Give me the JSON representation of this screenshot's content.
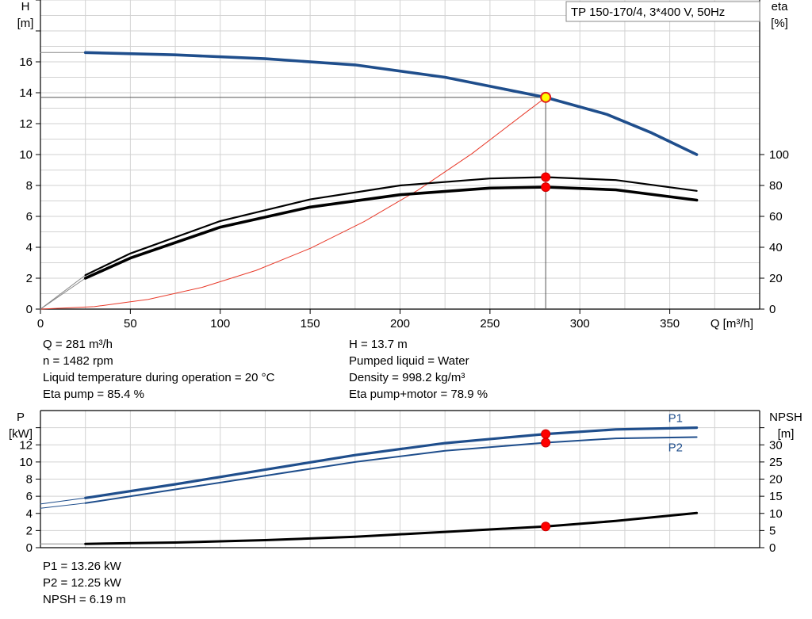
{
  "chart_data": [
    {
      "type": "line",
      "title": "TP 150-170/4, 3*400 V, 50Hz",
      "xlabel": "Q [m³/h]",
      "ylabel_left": [
        "H",
        "[m]"
      ],
      "ylabel_right": [
        "eta",
        "[%]"
      ],
      "xlim": [
        0,
        400
      ],
      "ylim_left": [
        0,
        20
      ],
      "ylim_right": [
        0,
        200
      ],
      "x_ticks": [
        "0",
        "50",
        "100",
        "150",
        "200",
        "250",
        "300",
        "350"
      ],
      "y_left_ticks": [
        "0",
        "2",
        "4",
        "6",
        "8",
        "10",
        "12",
        "14",
        "16"
      ],
      "y_right_ticks": [
        "0",
        "20",
        "40",
        "60",
        "80",
        "100"
      ],
      "grid": true,
      "series": [
        {
          "axis": "left",
          "color": "#1f4e8c",
          "x": [
            0,
            25,
            75,
            125,
            175,
            225,
            281,
            315,
            340,
            365
          ],
          "y": [
            16.6,
            16.6,
            16.45,
            16.2,
            15.8,
            15.0,
            13.7,
            12.6,
            11.4,
            10.0
          ]
        },
        {
          "axis": "right",
          "color": "#000000",
          "x": [
            0,
            25,
            50,
            100,
            150,
            200,
            250,
            281,
            320,
            365
          ],
          "y": [
            0,
            22,
            36,
            57,
            71,
            80,
            84.5,
            85.4,
            83.5,
            76.5
          ]
        },
        {
          "axis": "right",
          "color": "#000000",
          "x": [
            0,
            25,
            50,
            100,
            150,
            200,
            250,
            281,
            320,
            365
          ],
          "y": [
            0,
            20,
            33,
            53,
            66,
            74,
            78.3,
            78.9,
            77.2,
            70.5
          ]
        },
        {
          "axis": "left",
          "color": "#e83a2a",
          "x": [
            0,
            30,
            60,
            90,
            120,
            150,
            180,
            210,
            240,
            270,
            281
          ],
          "y": [
            0,
            0.16,
            0.63,
            1.41,
            2.51,
            3.93,
            5.66,
            7.7,
            10.06,
            12.73,
            13.7
          ]
        }
      ],
      "operating_point": {
        "q": 281,
        "h": 13.7,
        "eta_pump": 85.4,
        "eta_total": 78.9
      }
    },
    {
      "type": "line",
      "xlim": [
        0,
        400
      ],
      "ylim_left": [
        0,
        16
      ],
      "ylim_right": [
        0,
        40
      ],
      "ylabel_left": [
        "P",
        "[kW]"
      ],
      "ylabel_right": [
        "NPSH",
        "[m]"
      ],
      "y_left_ticks": [
        "0",
        "2",
        "4",
        "6",
        "8",
        "10",
        "12"
      ],
      "y_right_ticks": [
        "0",
        "5",
        "10",
        "15",
        "20",
        "25",
        "30"
      ],
      "grid": true,
      "series": [
        {
          "name": "P1",
          "axis": "left",
          "color": "#1f4e8c",
          "x": [
            0,
            25,
            75,
            125,
            175,
            225,
            281,
            320,
            365
          ],
          "y": [
            5.1,
            5.8,
            7.4,
            9.1,
            10.8,
            12.2,
            13.26,
            13.8,
            14.0
          ]
        },
        {
          "name": "P2",
          "axis": "left",
          "color": "#1f4e8c",
          "x": [
            0,
            25,
            75,
            125,
            175,
            225,
            281,
            320,
            365
          ],
          "y": [
            4.6,
            5.2,
            6.8,
            8.4,
            10.0,
            11.3,
            12.25,
            12.75,
            12.9
          ]
        },
        {
          "axis": "right",
          "color": "#000000",
          "x": [
            0,
            25,
            75,
            125,
            175,
            225,
            281,
            320,
            365
          ],
          "y": [
            1.1,
            1.1,
            1.5,
            2.2,
            3.2,
            4.6,
            6.19,
            7.8,
            10.1
          ]
        }
      ],
      "operating_point": {
        "q": 281,
        "p1": 13.26,
        "p2": 12.25,
        "npsh": 6.19
      }
    }
  ],
  "info_top_left": [
    "Q = 281 m³/h",
    "n = 1482 rpm",
    "Liquid temperature during operation = 20 °C",
    "Eta pump = 85.4 %"
  ],
  "info_top_right": [
    "H = 13.7 m",
    "Pumped liquid = Water",
    "Density = 998.2 kg/m³",
    "Eta pump+motor = 78.9 %"
  ],
  "info_bottom": [
    "P1 = 13.26 kW",
    "P2 = 12.25 kW",
    "NPSH = 6.19 m"
  ]
}
